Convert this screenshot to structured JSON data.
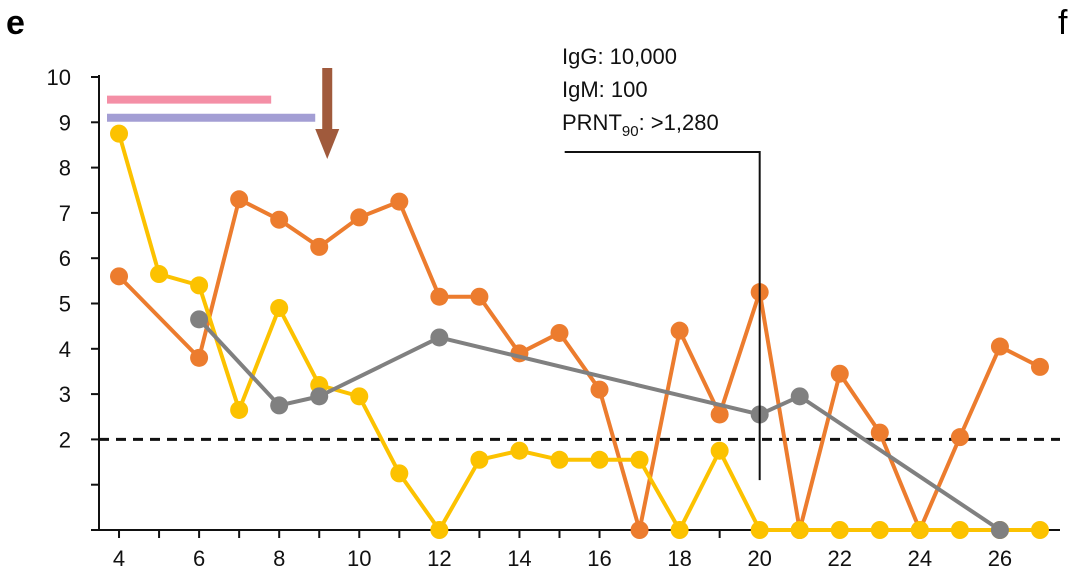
{
  "chart_data": {
    "type": "line",
    "panel_label": "e",
    "next_panel_label": "f",
    "xlim": [
      3.5,
      27.5
    ],
    "ylim": [
      0,
      10
    ],
    "x_ticks": [
      4,
      6,
      8,
      10,
      12,
      14,
      16,
      18,
      20,
      22,
      24,
      26
    ],
    "x_tick_labels": [
      "4",
      "6",
      "8",
      "10",
      "12",
      "14",
      "16",
      "18",
      "20",
      "22",
      "24",
      "26"
    ],
    "y_ticks": [
      2,
      3,
      4,
      5,
      6,
      7,
      8,
      9,
      10
    ],
    "y_tick_labels": [
      "2",
      "3",
      "4",
      "5",
      "6",
      "7",
      "8",
      "9",
      "10"
    ],
    "threshold": 2,
    "series": [
      {
        "color": "#ec7c2e",
        "x": [
          4,
          6,
          7,
          8,
          9,
          10,
          11,
          12,
          13,
          14,
          15,
          16,
          17,
          18,
          19,
          20,
          21,
          22,
          23,
          24,
          25,
          26,
          27
        ],
        "y": [
          5.6,
          3.8,
          7.3,
          6.85,
          6.25,
          6.9,
          7.25,
          5.15,
          5.15,
          3.9,
          4.35,
          3.1,
          0,
          4.4,
          2.55,
          5.25,
          0,
          3.45,
          2.15,
          0,
          2.05,
          4.05,
          3.6
        ]
      },
      {
        "color": "#fcc200",
        "x": [
          4,
          5,
          6,
          7,
          8,
          9,
          10,
          11,
          12,
          13,
          14,
          15,
          16,
          17,
          18,
          19,
          20,
          21,
          22,
          23,
          24,
          25,
          26,
          27
        ],
        "y": [
          8.75,
          5.65,
          5.4,
          2.65,
          4.9,
          3.2,
          2.95,
          1.25,
          0,
          1.55,
          1.75,
          1.55,
          1.55,
          1.55,
          0,
          1.75,
          0,
          0,
          0,
          0,
          0,
          0,
          0,
          0
        ]
      },
      {
        "color": "#808080",
        "x": [
          6,
          8,
          9,
          12,
          20,
          21,
          26
        ],
        "y": [
          4.65,
          2.75,
          2.95,
          4.25,
          2.55,
          2.95,
          0
        ]
      }
    ],
    "bars": [
      {
        "color": "#f48fa6",
        "x_start": 3.5,
        "x_end": 7.8,
        "y": 9.5
      },
      {
        "color": "#a39ed4",
        "x_start": 3.5,
        "x_end": 8.9,
        "y": 9.1
      }
    ],
    "arrow": {
      "color": "#a05a3c",
      "x": 9.2,
      "y_top": 10.2,
      "y_bottom": 8.5
    },
    "annotation": {
      "lines": [
        "IgG: 10,000",
        "IgM: 100"
      ],
      "prnt_main": "PRNT",
      "prnt_sub": "90",
      "prnt_value": ": >1,280",
      "x_pointer": 20
    }
  }
}
